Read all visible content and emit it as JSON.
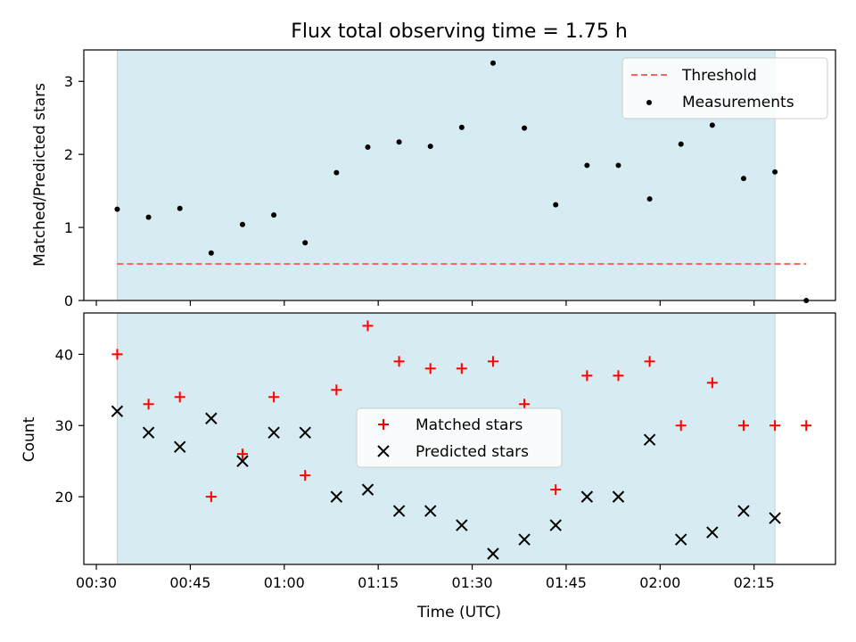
{
  "chart_data": [
    {
      "type": "scatter",
      "title": "Flux total observing time = 1.75 h",
      "ylabel": "Matched/Predicted stars",
      "xlabel": "",
      "ylim": [
        0,
        3.43
      ],
      "xlim": [
        "00:28",
        "02:28"
      ],
      "yticks": [
        0,
        1,
        2,
        3
      ],
      "shaded_region": {
        "x_start": "00:33:20",
        "x_end": "02:18:20",
        "color": "#add8e6"
      },
      "threshold": {
        "name": "Threshold",
        "value": 0.5,
        "x_start": "00:33:20",
        "x_end": "02:23:20",
        "color": "#ff6666",
        "style": "dashed"
      },
      "series": [
        {
          "name": "Measurements",
          "color": "#000000",
          "marker": "dot",
          "x": [
            "00:33:20",
            "00:38:20",
            "00:43:20",
            "00:48:20",
            "00:53:20",
            "00:58:20",
            "01:03:20",
            "01:08:20",
            "01:13:20",
            "01:18:20",
            "01:23:20",
            "01:28:20",
            "01:33:20",
            "01:38:20",
            "01:43:20",
            "01:48:20",
            "01:53:20",
            "01:58:20",
            "02:03:20",
            "02:08:20",
            "02:13:20",
            "02:18:20",
            "02:23:20"
          ],
          "values": [
            1.25,
            1.14,
            1.26,
            0.65,
            1.04,
            1.17,
            0.79,
            1.75,
            2.1,
            2.17,
            2.11,
            2.37,
            3.25,
            2.36,
            1.31,
            1.85,
            1.85,
            1.39,
            2.14,
            2.4,
            1.67,
            1.76,
            0.0
          ]
        }
      ],
      "legend": {
        "placement": "top-right",
        "entries": [
          "Threshold",
          "Measurements"
        ]
      },
      "grid": false
    },
    {
      "type": "scatter",
      "title": "",
      "ylabel": "Count",
      "xlabel": "Time (UTC)",
      "ylim": [
        10.5,
        45.8
      ],
      "xlim": [
        "00:28",
        "02:28"
      ],
      "yticks": [
        20,
        30,
        40
      ],
      "xticks": [
        "00:30",
        "00:45",
        "01:00",
        "01:15",
        "01:30",
        "01:45",
        "02:00",
        "02:15"
      ],
      "shaded_region": {
        "x_start": "00:33:20",
        "x_end": "02:18:20",
        "color": "#add8e6"
      },
      "series": [
        {
          "name": "Matched stars",
          "color": "#ff0000",
          "marker": "plus",
          "x": [
            "00:33:20",
            "00:38:20",
            "00:43:20",
            "00:48:20",
            "00:53:20",
            "00:58:20",
            "01:03:20",
            "01:08:20",
            "01:13:20",
            "01:18:20",
            "01:23:20",
            "01:28:20",
            "01:33:20",
            "01:38:20",
            "01:43:20",
            "01:48:20",
            "01:53:20",
            "01:58:20",
            "02:03:20",
            "02:08:20",
            "02:13:20",
            "02:18:20",
            "02:23:20"
          ],
          "values": [
            40,
            33,
            34,
            20,
            26,
            34,
            23,
            35,
            44,
            39,
            38,
            38,
            39,
            33,
            21,
            37,
            37,
            39,
            30,
            36,
            30,
            30,
            30
          ]
        },
        {
          "name": "Predicted stars",
          "color": "#000000",
          "marker": "x",
          "x": [
            "00:33:20",
            "00:38:20",
            "00:43:20",
            "00:48:20",
            "00:53:20",
            "00:58:20",
            "01:03:20",
            "01:08:20",
            "01:13:20",
            "01:18:20",
            "01:23:20",
            "01:28:20",
            "01:33:20",
            "01:38:20",
            "01:43:20",
            "01:48:20",
            "01:53:20",
            "01:58:20",
            "02:03:20",
            "02:08:20",
            "02:13:20",
            "02:18:20"
          ],
          "values": [
            32,
            29,
            27,
            31,
            25,
            29,
            29,
            20,
            21,
            18,
            18,
            16,
            12,
            14,
            16,
            20,
            20,
            28,
            14,
            15,
            18,
            17
          ]
        }
      ],
      "legend": {
        "placement": "center",
        "entries": [
          "Matched stars",
          "Predicted stars"
        ]
      },
      "grid": false
    }
  ]
}
